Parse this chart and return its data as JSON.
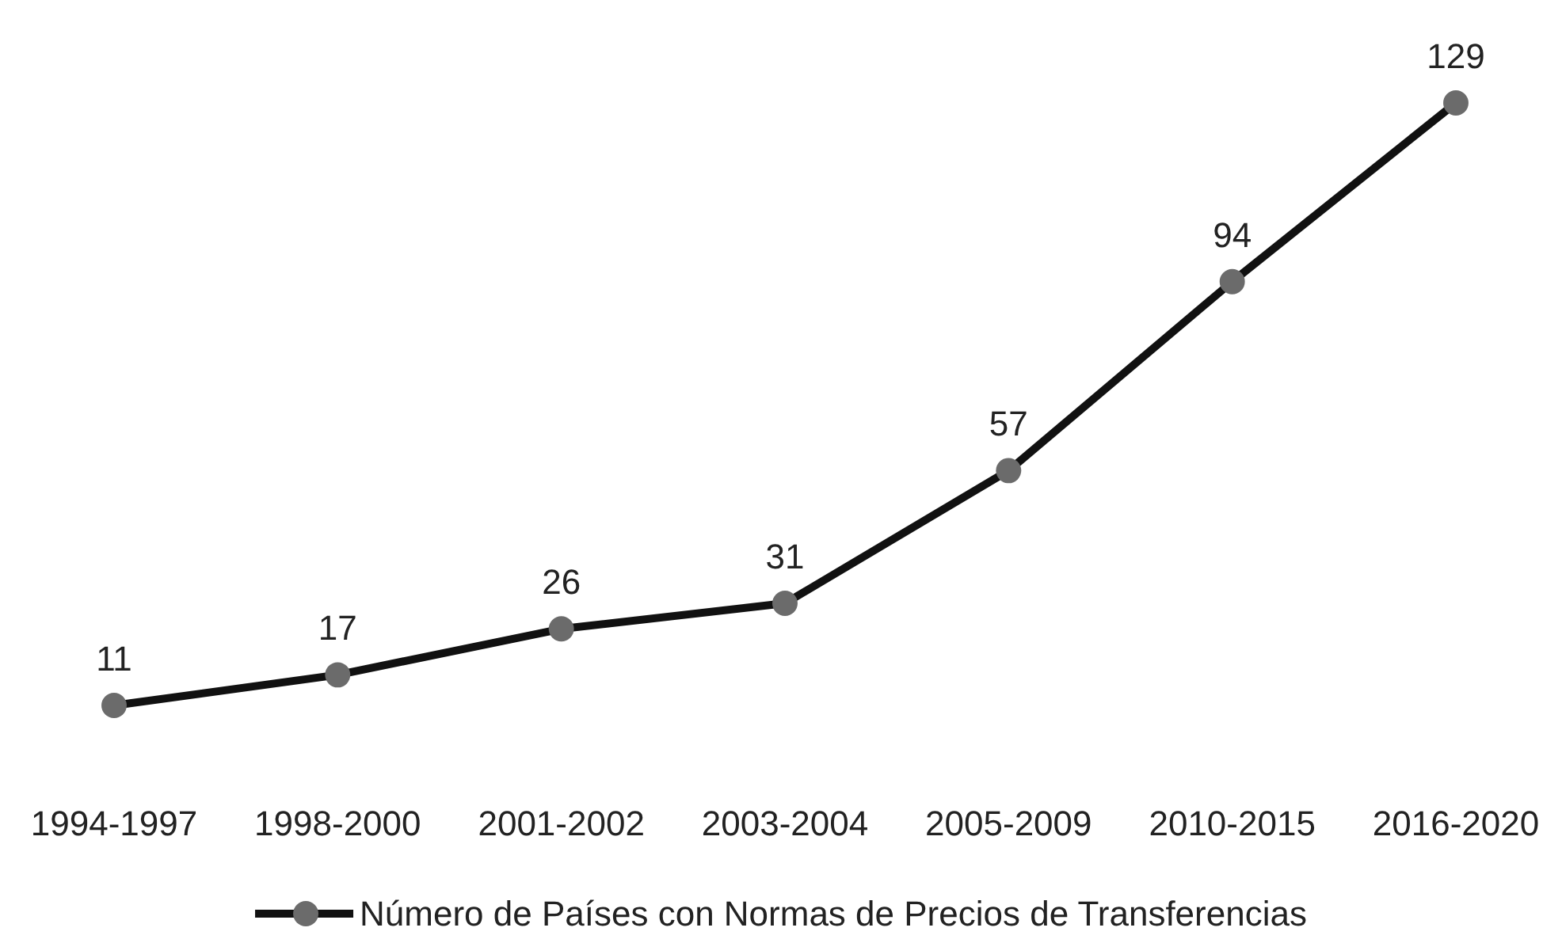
{
  "chart_data": {
    "type": "line",
    "categories": [
      "1994-1997",
      "1998-2000",
      "2001-2002",
      "2003-2004",
      "2005-2009",
      "2010-2015",
      "2016-2020"
    ],
    "series": [
      {
        "name": "Número de Países con Normas de Precios de Transferencias",
        "color": "#111111",
        "values": [
          11,
          17,
          26,
          31,
          57,
          94,
          129
        ]
      }
    ],
    "data_labels": true,
    "marker": "circle",
    "legend": "bottom"
  }
}
